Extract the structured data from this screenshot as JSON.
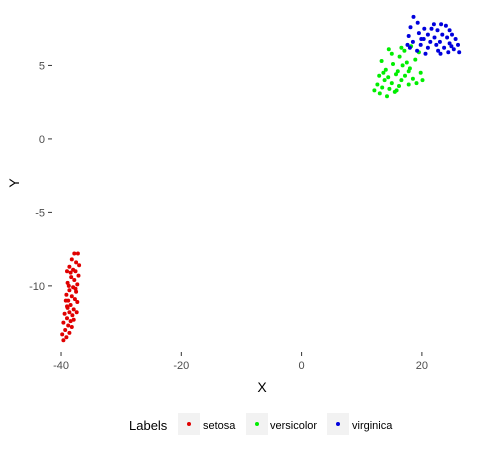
{
  "chart_data": {
    "type": "scatter",
    "title": "",
    "xlabel": "X",
    "ylabel": "Y",
    "xlim": [
      -41.5,
      28
    ],
    "ylim": [
      -14.5,
      8.5
    ],
    "xticks": [
      -40,
      -20,
      0,
      20
    ],
    "xtick_labels": [
      "-40",
      "-20",
      "0",
      "20"
    ],
    "yticks": [
      -10,
      -5,
      0,
      5
    ],
    "ytick_labels": [
      "-10",
      "-5",
      "0",
      "5"
    ],
    "grid": false,
    "legend": {
      "title": "Labels",
      "position": "bottom"
    },
    "series": [
      {
        "name": "setosa",
        "color": "#e00000",
        "points": [
          [
            -37.8,
            -7.8
          ],
          [
            -37.2,
            -7.8
          ],
          [
            -38.2,
            -8.2
          ],
          [
            -37.5,
            -8.4
          ],
          [
            -37.0,
            -8.6
          ],
          [
            -38.6,
            -8.7
          ],
          [
            -39.0,
            -9.0
          ],
          [
            -37.6,
            -9.0
          ],
          [
            -37.1,
            -9.3
          ],
          [
            -38.3,
            -9.4
          ],
          [
            -37.8,
            -9.6
          ],
          [
            -38.9,
            -9.8
          ],
          [
            -37.3,
            -9.9
          ],
          [
            -38.0,
            -10.1
          ],
          [
            -38.6,
            -10.3
          ],
          [
            -37.5,
            -10.4
          ],
          [
            -39.1,
            -10.6
          ],
          [
            -38.2,
            -10.7
          ],
          [
            -37.7,
            -10.9
          ],
          [
            -38.8,
            -11.0
          ],
          [
            -37.3,
            -11.1
          ],
          [
            -38.4,
            -11.3
          ],
          [
            -39.0,
            -11.4
          ],
          [
            -37.9,
            -11.6
          ],
          [
            -38.6,
            -11.8
          ],
          [
            -39.4,
            -11.9
          ],
          [
            -38.1,
            -12.0
          ],
          [
            -39.0,
            -12.2
          ],
          [
            -38.4,
            -12.4
          ],
          [
            -39.6,
            -12.5
          ],
          [
            -38.8,
            -12.7
          ],
          [
            -38.2,
            -12.8
          ],
          [
            -39.3,
            -13.0
          ],
          [
            -38.6,
            -13.2
          ],
          [
            -39.8,
            -13.3
          ],
          [
            -39.1,
            -13.5
          ],
          [
            -39.6,
            -13.7
          ],
          [
            -38.9,
            -11.5
          ],
          [
            -37.6,
            -10.2
          ],
          [
            -38.4,
            -9.1
          ],
          [
            -37.9,
            -12.3
          ],
          [
            -39.2,
            -11.0
          ],
          [
            -38.0,
            -8.9
          ],
          [
            -37.4,
            -11.8
          ],
          [
            -38.7,
            -10.0
          ]
        ]
      },
      {
        "name": "versicolor",
        "color": "#00ee00",
        "points": [
          [
            14.2,
            2.9
          ],
          [
            13.0,
            3.1
          ],
          [
            15.5,
            3.2
          ],
          [
            12.1,
            3.3
          ],
          [
            14.6,
            3.4
          ],
          [
            13.4,
            3.5
          ],
          [
            16.2,
            3.6
          ],
          [
            12.6,
            3.7
          ],
          [
            15.0,
            3.8
          ],
          [
            17.8,
            3.7
          ],
          [
            19.1,
            3.8
          ],
          [
            13.8,
            4.0
          ],
          [
            16.6,
            4.0
          ],
          [
            18.5,
            4.1
          ],
          [
            14.4,
            4.2
          ],
          [
            12.9,
            4.3
          ],
          [
            17.2,
            4.3
          ],
          [
            15.7,
            4.4
          ],
          [
            19.8,
            4.5
          ],
          [
            16.0,
            4.6
          ],
          [
            14.0,
            4.7
          ],
          [
            18.0,
            4.8
          ],
          [
            16.8,
            5.0
          ],
          [
            15.2,
            5.1
          ],
          [
            17.5,
            5.2
          ],
          [
            13.3,
            5.3
          ],
          [
            18.9,
            5.4
          ],
          [
            16.3,
            5.6
          ],
          [
            15.0,
            5.8
          ],
          [
            17.1,
            6.0
          ],
          [
            16.6,
            6.2
          ],
          [
            18.2,
            6.3
          ],
          [
            14.5,
            6.1
          ],
          [
            19.5,
            5.9
          ],
          [
            17.8,
            4.6
          ],
          [
            13.6,
            4.5
          ],
          [
            15.8,
            3.3
          ],
          [
            20.1,
            4.0
          ]
        ]
      },
      {
        "name": "virginica",
        "color": "#0000dd",
        "points": [
          [
            18.6,
            8.3
          ],
          [
            19.3,
            7.9
          ],
          [
            22.0,
            7.8
          ],
          [
            23.2,
            7.8
          ],
          [
            24.0,
            7.7
          ],
          [
            18.1,
            7.6
          ],
          [
            20.4,
            7.5
          ],
          [
            21.6,
            7.5
          ],
          [
            22.6,
            7.4
          ],
          [
            24.6,
            7.4
          ],
          [
            19.5,
            7.2
          ],
          [
            21.0,
            7.1
          ],
          [
            23.4,
            7.1
          ],
          [
            25.0,
            7.1
          ],
          [
            17.8,
            7.0
          ],
          [
            22.1,
            6.9
          ],
          [
            24.2,
            6.9
          ],
          [
            20.3,
            6.8
          ],
          [
            25.6,
            6.8
          ],
          [
            18.5,
            6.6
          ],
          [
            21.4,
            6.6
          ],
          [
            23.0,
            6.6
          ],
          [
            24.6,
            6.5
          ],
          [
            19.8,
            6.4
          ],
          [
            22.4,
            6.4
          ],
          [
            26.0,
            6.4
          ],
          [
            18.0,
            6.2
          ],
          [
            21.0,
            6.2
          ],
          [
            23.7,
            6.2
          ],
          [
            25.3,
            6.1
          ],
          [
            19.2,
            6.0
          ],
          [
            22.7,
            6.0
          ],
          [
            24.4,
            5.9
          ],
          [
            26.2,
            5.9
          ],
          [
            20.6,
            5.8
          ],
          [
            23.1,
            5.8
          ],
          [
            17.6,
            6.4
          ],
          [
            19.9,
            6.8
          ],
          [
            24.9,
            6.3
          ]
        ]
      }
    ]
  }
}
